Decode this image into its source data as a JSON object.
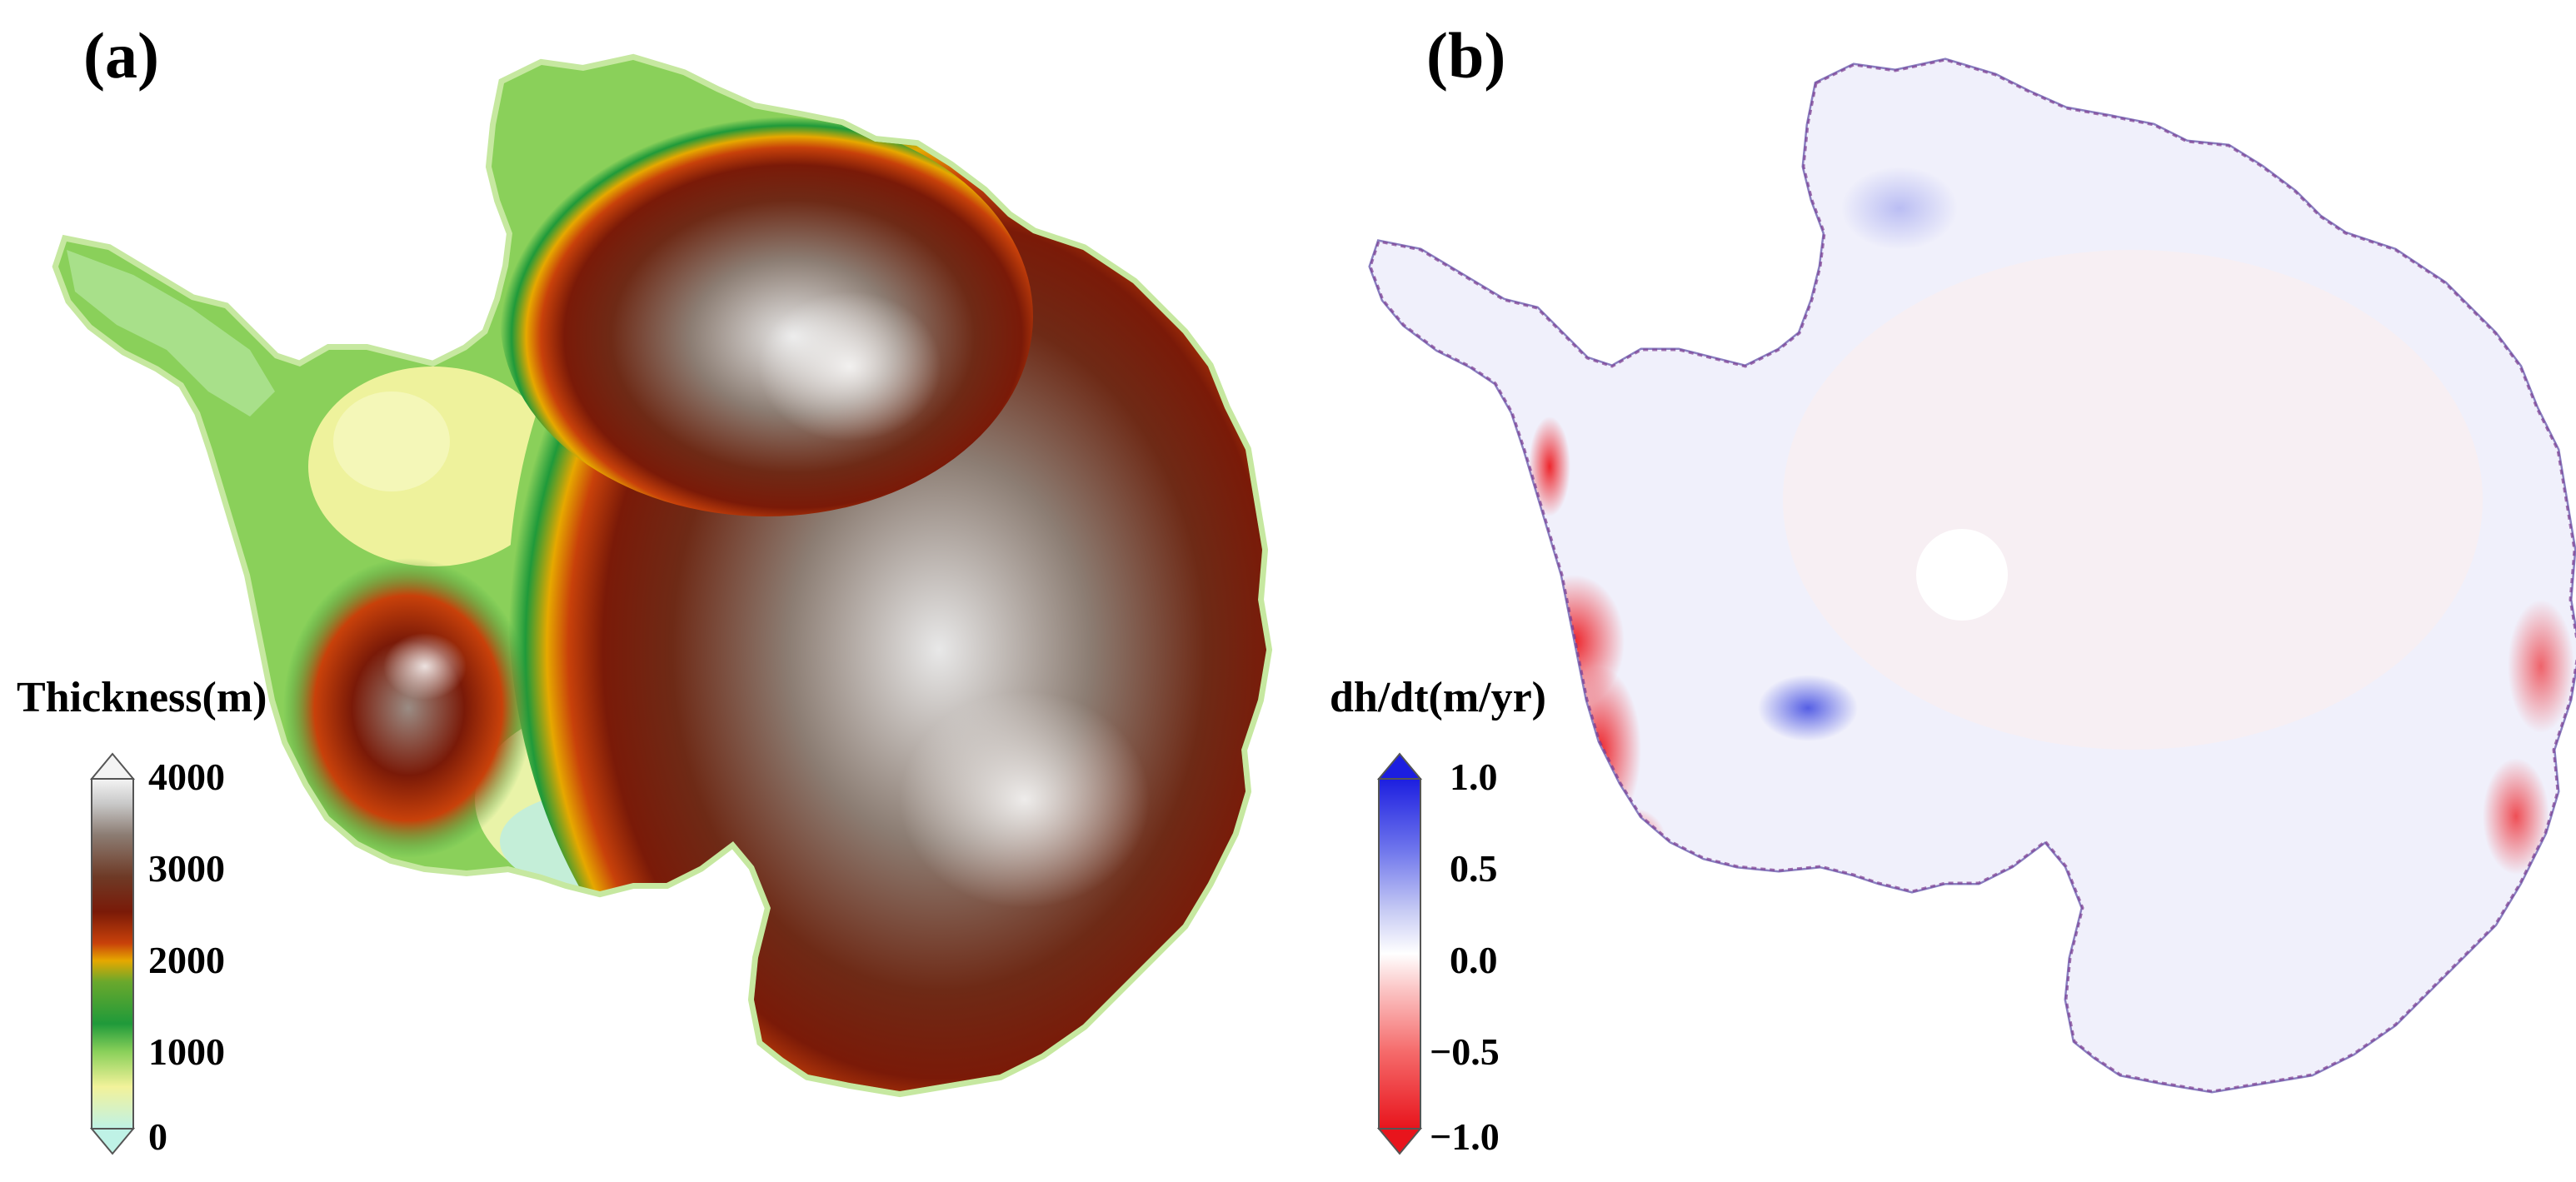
{
  "panels": [
    {
      "id": "a",
      "label": "(a)",
      "colorbar": {
        "title": "Thickness(m)",
        "ticks": [
          "4000",
          "3000",
          "2000",
          "1000",
          "0"
        ],
        "tick_values": [
          4000,
          3000,
          2000,
          1000,
          0
        ],
        "range": [
          0,
          4000
        ],
        "extend": "both",
        "colors": [
          "#bff2e6",
          "#f2f29a",
          "#8ad05a",
          "#1f9a3a",
          "#6aa82c",
          "#e6a800",
          "#c8410a",
          "#7a1a08",
          "#6e3a26",
          "#8c7d73",
          "#c9c9c9",
          "#f4f4f4"
        ]
      }
    },
    {
      "id": "b",
      "label": "(b)",
      "colorbar": {
        "title": "dh/dt(m/yr)",
        "ticks": [
          "1.0",
          "0.5",
          "0.0",
          "−0.5",
          "−1.0"
        ],
        "tick_values": [
          1.0,
          0.5,
          0.0,
          -0.5,
          -1.0
        ],
        "range": [
          -1.0,
          1.0
        ],
        "extend": "both",
        "colors": [
          "#e8141c",
          "#f56b6b",
          "#fbc6c6",
          "#ffffff",
          "#c8ccf4",
          "#6d74ec",
          "#1c1ee0"
        ]
      }
    }
  ]
}
